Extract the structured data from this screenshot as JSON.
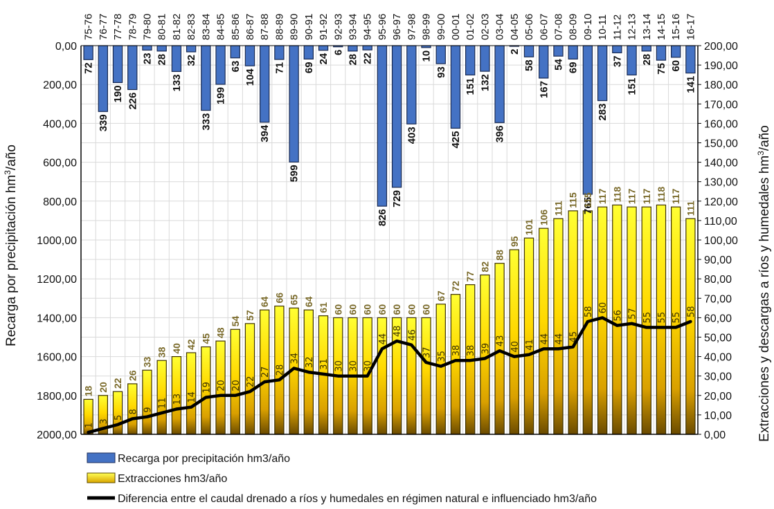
{
  "chart_data": {
    "type": "bar",
    "title": "",
    "categories": [
      "75-76",
      "76-77",
      "77-78",
      "78-79",
      "79-80",
      "80-81",
      "81-82",
      "82-83",
      "83-84",
      "84-85",
      "85-86",
      "86-87",
      "87-88",
      "88-89",
      "89-90",
      "90-91",
      "91-92",
      "92-93",
      "93-94",
      "94-95",
      "95-96",
      "96-97",
      "97-98",
      "98-99",
      "99-00",
      "00-01",
      "01-02",
      "02-03",
      "03-04",
      "04-05",
      "05-06",
      "06-07",
      "07-08",
      "08-09",
      "09-10",
      "10-11",
      "11-12",
      "12-13",
      "13-14",
      "14-15",
      "15-16",
      "16-17"
    ],
    "series": [
      {
        "name": "Recarga por precipitación hm3/año",
        "type": "bar",
        "axis": "left-inverted",
        "color": "#4472c4",
        "values": [
          72,
          339,
          190,
          226,
          23,
          28,
          133,
          32,
          333,
          199,
          63,
          104,
          394,
          71,
          599,
          69,
          24,
          6,
          28,
          22,
          826,
          729,
          403,
          10,
          93,
          425,
          151,
          132,
          396,
          2,
          58,
          167,
          54,
          69,
          765,
          283,
          37,
          151,
          28,
          75,
          60,
          141
        ]
      },
      {
        "name": "Extracciones hm3/año",
        "type": "bar",
        "axis": "right",
        "color": "#ffee00",
        "color_bottom": "#7a5a00",
        "values": [
          18,
          20,
          22,
          26,
          33,
          38,
          40,
          42,
          45,
          48,
          54,
          57,
          64,
          66,
          65,
          64,
          61,
          60,
          60,
          60,
          60,
          60,
          60,
          60,
          67,
          72,
          77,
          82,
          88,
          95,
          101,
          106,
          111,
          115,
          115,
          117,
          118,
          117,
          117,
          118,
          117,
          111
        ]
      },
      {
        "name": "Diferencia entre el caudal drenado a ríos y humedales en régimen natural e influenciado hm3/año",
        "type": "line",
        "axis": "right",
        "color": "#000000",
        "values": [
          1,
          3,
          5,
          8,
          9,
          11,
          13,
          14,
          19,
          20,
          20,
          22,
          27,
          28,
          34,
          32,
          31,
          30,
          30,
          30,
          44,
          48,
          46,
          37,
          35,
          38,
          38,
          39,
          43,
          40,
          41,
          44,
          44,
          45,
          58,
          60,
          56,
          57,
          55,
          55,
          55,
          58
        ]
      }
    ],
    "y_left": {
      "label_main": "Recarga por precipitación hm",
      "label_sup": "3",
      "label_tail": "/año",
      "range": [
        0,
        2000
      ],
      "inverted": true,
      "step": 200,
      "ticks": [
        "0,00",
        "200,00",
        "400,00",
        "600,00",
        "800,00",
        "1000,00",
        "1200,00",
        "1400,00",
        "1600,00",
        "1800,00",
        "2000,00"
      ]
    },
    "y_right": {
      "label_main": "Extracciones y descargas a ríos y humedales hm",
      "label_sup": "3",
      "label_tail": "/año",
      "range": [
        0,
        200
      ],
      "step": 10,
      "ticks": [
        "0,00",
        "10,00",
        "20,00",
        "30,00",
        "40,00",
        "50,00",
        "60,00",
        "70,00",
        "80,00",
        "90,00",
        "100,00",
        "110,00",
        "120,00",
        "130,00",
        "140,00",
        "150,00",
        "160,00",
        "170,00",
        "180,00",
        "190,00",
        "200,00"
      ]
    },
    "xaxis_position": "top",
    "grid": true,
    "legend_position": "bottom-left"
  }
}
